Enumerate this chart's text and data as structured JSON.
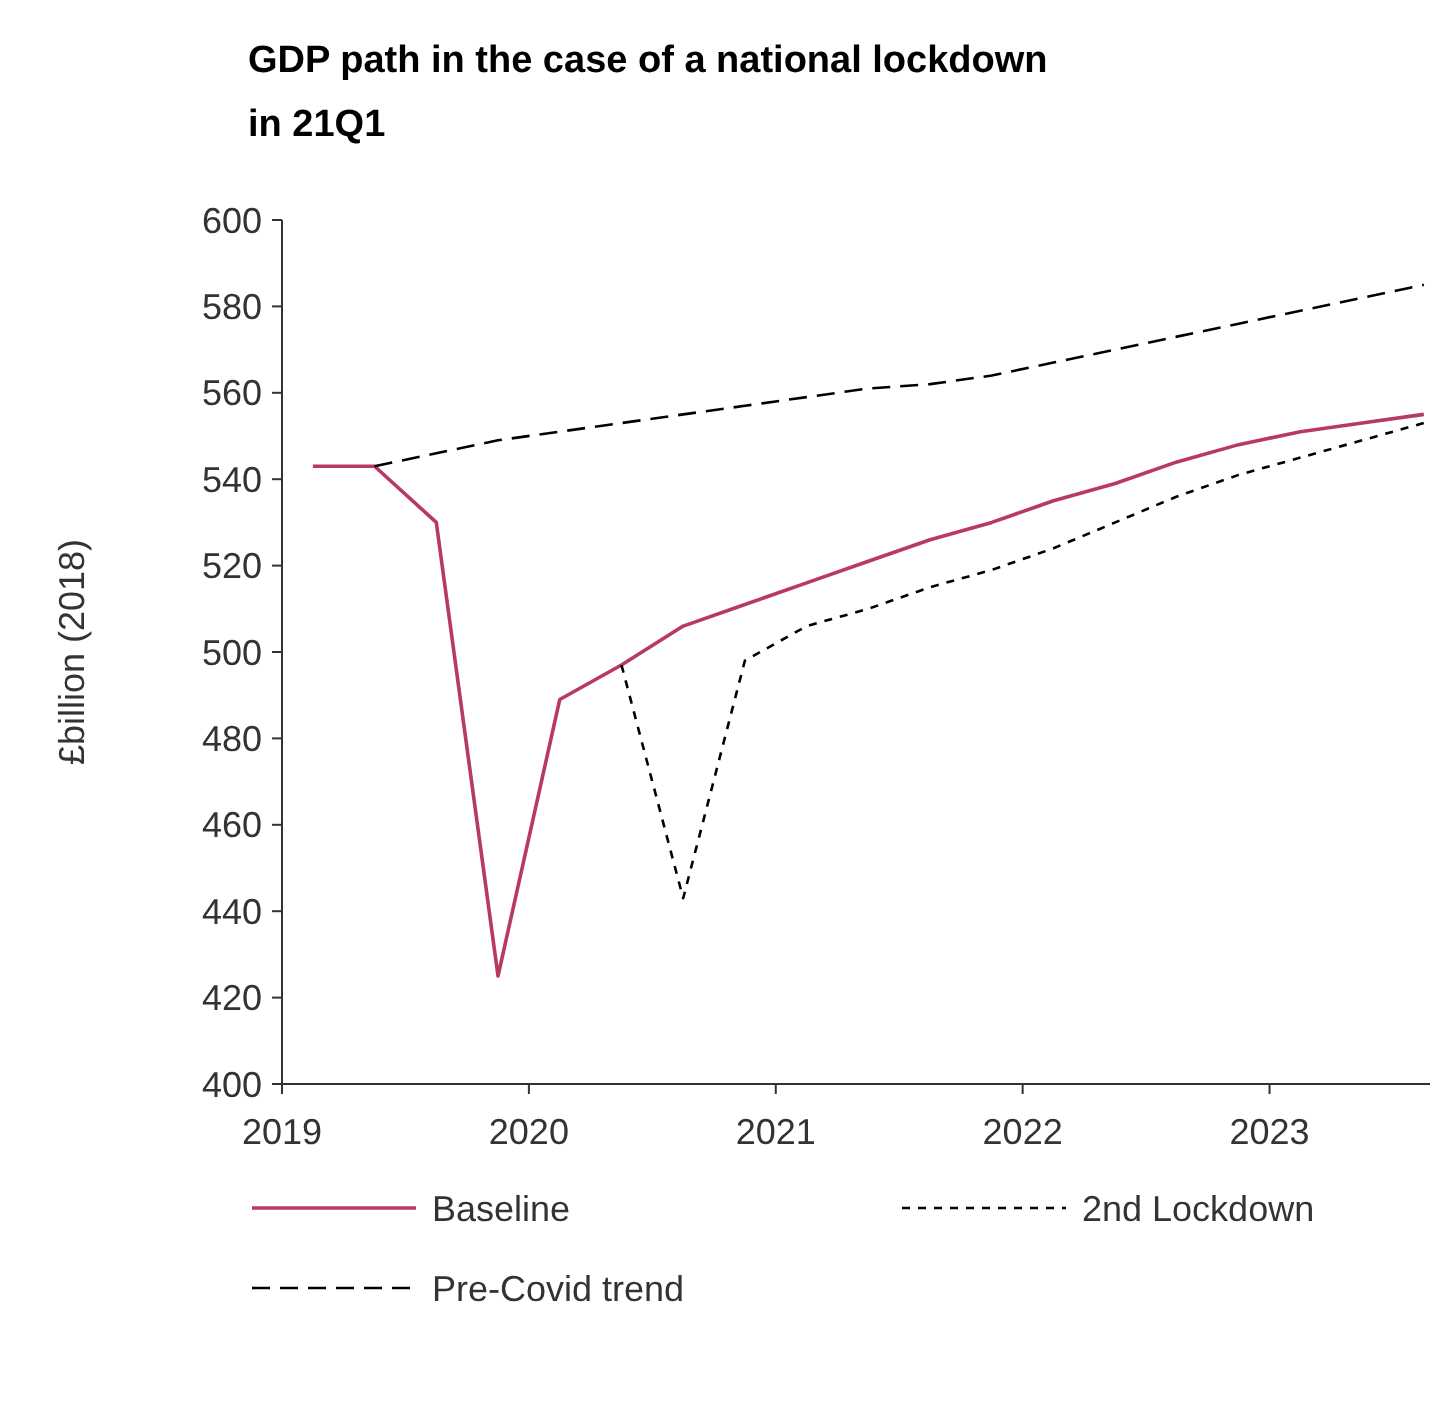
{
  "chart_data": {
    "type": "line",
    "title": "GDP path in the case of a national  lockdown in 21Q1",
    "ylabel": "£billion (2018)",
    "xlim": [
      2019,
      2023.65
    ],
    "xticks": [
      2019,
      2020,
      2021,
      2022,
      2023
    ],
    "ylim": [
      400,
      600
    ],
    "yticks": [
      400,
      420,
      440,
      460,
      480,
      500,
      520,
      540,
      560,
      580,
      600
    ],
    "grid": false,
    "legend": "bottom",
    "series": [
      {
        "name": "Baseline",
        "color": "#b83a5e",
        "line_style": "solid",
        "x": [
          2019.125,
          2019.375,
          2019.625,
          2019.875,
          2020.125,
          2020.375,
          2020.625,
          2020.875,
          2021.125,
          2021.375,
          2021.625,
          2021.875,
          2022.125,
          2022.375,
          2022.625,
          2022.875,
          2023.125,
          2023.375,
          2023.625
        ],
        "values": [
          543,
          543,
          530,
          425,
          489,
          497,
          506,
          511,
          516,
          521,
          526,
          530,
          535,
          539,
          544,
          548,
          551,
          553,
          555
        ]
      },
      {
        "name": "2nd Lockdown",
        "color": "#000000",
        "line_style": "dotted",
        "x": [
          2020.375,
          2020.625,
          2020.875,
          2021.125,
          2021.375,
          2021.625,
          2021.875,
          2022.125,
          2022.375,
          2022.625,
          2022.875,
          2023.125,
          2023.375,
          2023.625
        ],
        "values": [
          497,
          443,
          498,
          506,
          510,
          515,
          519,
          524,
          530,
          536,
          541,
          545,
          549,
          553
        ]
      },
      {
        "name": "Pre-Covid trend",
        "color": "#000000",
        "line_style": "dashed",
        "x": [
          2019.375,
          2019.625,
          2019.875,
          2020.125,
          2020.375,
          2020.625,
          2020.875,
          2021.125,
          2021.375,
          2021.625,
          2021.875,
          2022.125,
          2022.375,
          2022.625,
          2022.875,
          2023.125,
          2023.375,
          2023.625
        ],
        "values": [
          543,
          546,
          549,
          551,
          553,
          555,
          557,
          559,
          561,
          562,
          564,
          567,
          570,
          573,
          576,
          579,
          582,
          585
        ]
      }
    ]
  }
}
